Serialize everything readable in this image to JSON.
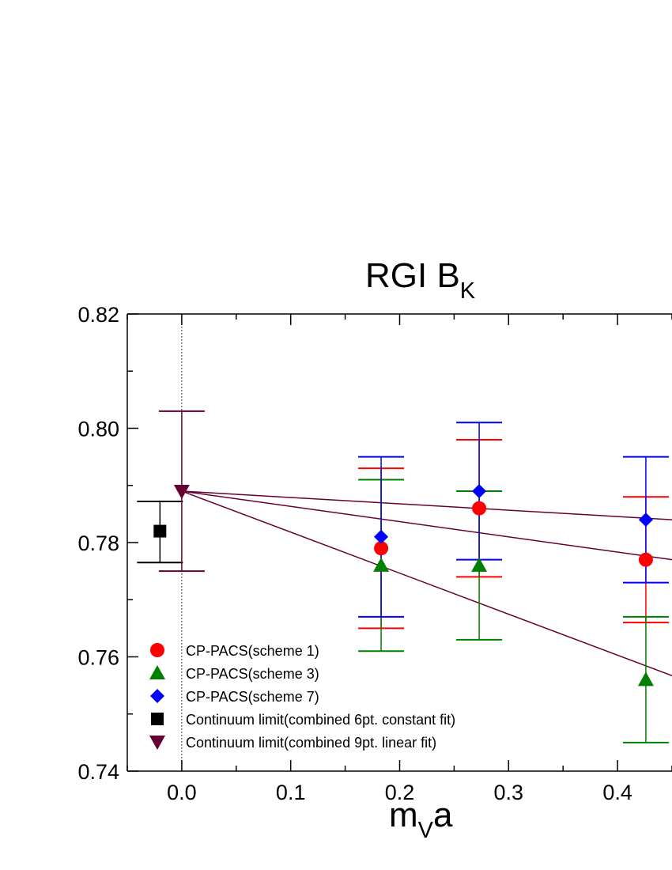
{
  "chart_data": {
    "type": "scatter",
    "title": {
      "main": "RGI B",
      "sub": "K"
    },
    "xlabel": {
      "main": "m",
      "sub": "V",
      "tail": "a"
    },
    "ylabel": "",
    "xlim": [
      -0.05,
      0.45
    ],
    "ylim": [
      0.74,
      0.82
    ],
    "x_ticks": [
      0.0,
      0.1,
      0.2,
      0.3,
      0.4
    ],
    "x_tick_labels": [
      "0.0",
      "0.1",
      "0.2",
      "0.3",
      "0.4"
    ],
    "y_ticks": [
      0.74,
      0.76,
      0.78,
      0.8,
      0.82
    ],
    "y_tick_labels": [
      "0.74",
      "0.76",
      "0.78",
      "0.80",
      "0.82"
    ],
    "grid": false,
    "legend_position": "bottom-left",
    "vertical_reference_line": {
      "x": 0.0,
      "style": "dotted"
    },
    "series": [
      {
        "name": "CP-PACS(scheme 1)",
        "marker": "circle",
        "color": "#ff0000",
        "points": [
          {
            "x": 0.183,
            "y": 0.779,
            "err_low": 0.765,
            "err_high": 0.793
          },
          {
            "x": 0.273,
            "y": 0.786,
            "err_low": 0.774,
            "err_high": 0.798
          },
          {
            "x": 0.426,
            "y": 0.777,
            "err_low": 0.766,
            "err_high": 0.788
          }
        ]
      },
      {
        "name": "CP-PACS(scheme 3)",
        "marker": "triangle-up",
        "color": "#008000",
        "points": [
          {
            "x": 0.183,
            "y": 0.776,
            "err_low": 0.761,
            "err_high": 0.791
          },
          {
            "x": 0.273,
            "y": 0.776,
            "err_low": 0.763,
            "err_high": 0.789
          },
          {
            "x": 0.426,
            "y": 0.756,
            "err_low": 0.745,
            "err_high": 0.767
          }
        ]
      },
      {
        "name": "CP-PACS(scheme 7)",
        "marker": "diamond",
        "color": "#0000ff",
        "points": [
          {
            "x": 0.183,
            "y": 0.781,
            "err_low": 0.767,
            "err_high": 0.795
          },
          {
            "x": 0.273,
            "y": 0.789,
            "err_low": 0.777,
            "err_high": 0.801
          },
          {
            "x": 0.426,
            "y": 0.784,
            "err_low": 0.773,
            "err_high": 0.795
          }
        ]
      },
      {
        "name": "Continuum limit(combined 6pt. constant fit)",
        "marker": "square",
        "color": "#000000",
        "points": [
          {
            "x": -0.02,
            "y": 0.782,
            "err_low": 0.7765,
            "err_high": 0.7872
          }
        ]
      },
      {
        "name": "Continuum limit(combined 9pt. linear fit)",
        "marker": "triangle-down",
        "color": "#660033",
        "points": [
          {
            "x": 0.0,
            "y": 0.789,
            "err_low": 0.775,
            "err_high": 0.803
          }
        ]
      }
    ],
    "fit_lines": [
      {
        "color": "#660033",
        "x0": 0.0,
        "y0": 0.789,
        "x1": 0.45,
        "y1": 0.784
      },
      {
        "color": "#660033",
        "x0": 0.0,
        "y0": 0.789,
        "x1": 0.45,
        "y1": 0.777
      },
      {
        "color": "#660033",
        "x0": 0.0,
        "y0": 0.789,
        "x1": 0.45,
        "y1": 0.7567
      }
    ]
  }
}
